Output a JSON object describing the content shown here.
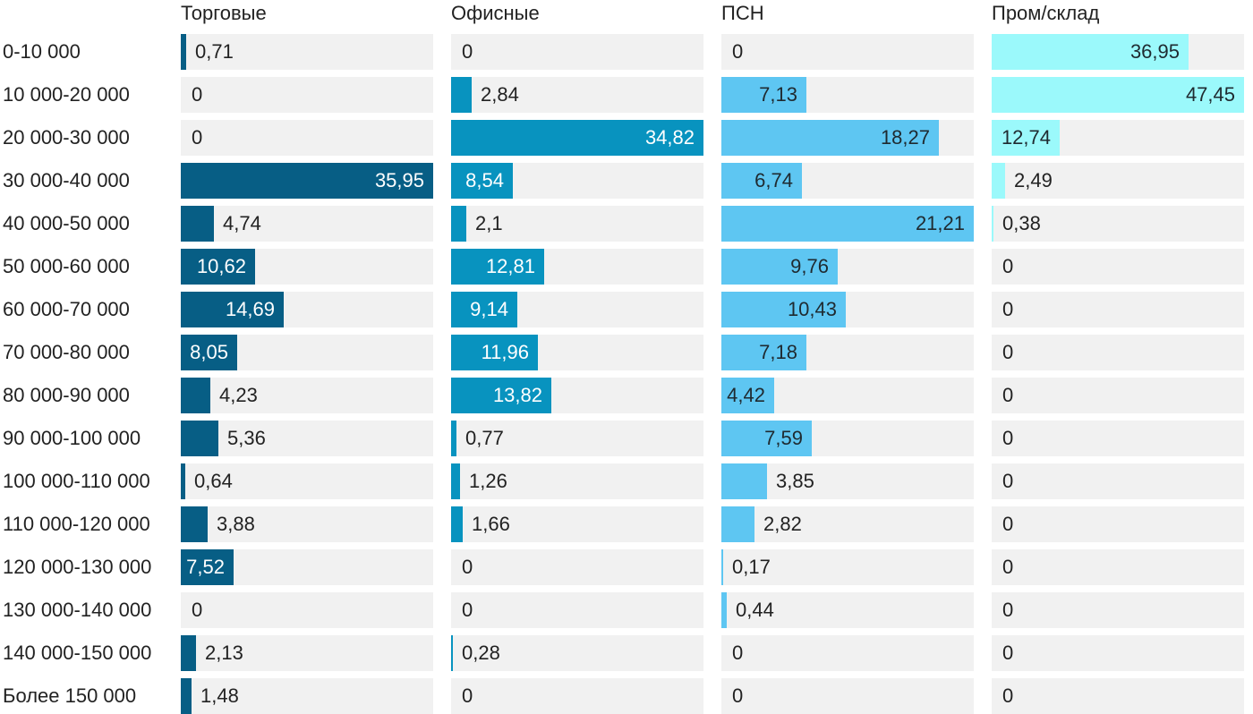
{
  "chart_data": {
    "type": "bar",
    "title": "",
    "xlabel": "",
    "ylabel": "",
    "xlim": [
      0,
      47.45
    ],
    "categories": [
      "0-10 000",
      "10 000-20 000",
      "20 000-30 000",
      "30 000-40 000",
      "40 000-50 000",
      "50 000-60 000",
      "60 000-70 000",
      "70 000-80 000",
      "80 000-90 000",
      "90 000-100 000",
      "100 000-110 000",
      "110 000-120 000",
      "120 000-130 000",
      "130 000-140 000",
      "140 000-150 000",
      "Более 150 000"
    ],
    "series": [
      {
        "name": "Торговые",
        "color": "#075e85",
        "label_color_inside": "#ffffff",
        "values": [
          0.71,
          0,
          0,
          35.95,
          4.74,
          10.62,
          14.69,
          8.05,
          4.23,
          5.36,
          0.64,
          3.88,
          7.52,
          0,
          2.13,
          1.48
        ],
        "labels": [
          "0,71",
          "0",
          "0",
          "35,95",
          "4,74",
          "10,62",
          "14,69",
          "8,05",
          "4,23",
          "5,36",
          "0,64",
          "3,88",
          "7,52",
          "0",
          "2,13",
          "1,48"
        ]
      },
      {
        "name": "Офисные",
        "color": "#0893bf",
        "label_color_inside": "#ffffff",
        "values": [
          0,
          2.84,
          34.82,
          8.54,
          2.1,
          12.81,
          9.14,
          11.96,
          13.82,
          0.77,
          1.26,
          1.66,
          0,
          0,
          0.28,
          0
        ],
        "labels": [
          "0",
          "2,84",
          "34,82",
          "8,54",
          "2,1",
          "12,81",
          "9,14",
          "11,96",
          "13,82",
          "0,77",
          "1,26",
          "1,66",
          "0",
          "0",
          "0,28",
          "0"
        ]
      },
      {
        "name": "ПСН",
        "color": "#5ec6f2",
        "label_color_inside": "#1f2a30",
        "values": [
          0,
          7.13,
          18.27,
          6.74,
          21.21,
          9.76,
          10.43,
          7.18,
          4.42,
          7.59,
          3.85,
          2.82,
          0.17,
          0.44,
          0,
          0
        ],
        "labels": [
          "0",
          "7,13",
          "18,27",
          "6,74",
          "21,21",
          "9,76",
          "10,43",
          "7,18",
          "4,42",
          "7,59",
          "3,85",
          "2,82",
          "0,17",
          "0,44",
          "0",
          "0"
        ]
      },
      {
        "name": "Пром/склад",
        "color": "#9bf9fb",
        "label_color_inside": "#1f2a30",
        "values": [
          36.95,
          47.45,
          12.74,
          2.49,
          0.38,
          0,
          0,
          0,
          0,
          0,
          0,
          0,
          0,
          0,
          0,
          0
        ],
        "labels": [
          "36,95",
          "47,45",
          "12,74",
          "2,49",
          "0,38",
          "0",
          "0",
          "0",
          "0",
          "0",
          "0",
          "0",
          "0",
          "0",
          "0",
          "0"
        ]
      }
    ]
  }
}
